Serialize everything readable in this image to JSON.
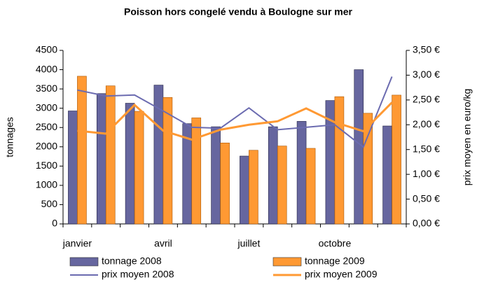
{
  "chart_data": {
    "type": "bar_line",
    "title": "Poisson hors congelé vendu à Boulogne sur mer",
    "y_label": "tonnages",
    "y2_label": "prix moyen en euro/kg",
    "categories": [
      "janvier",
      null,
      null,
      "avril",
      null,
      null,
      "juillet",
      null,
      null,
      "octobre",
      null,
      null
    ],
    "series": [
      {
        "name": "tonnage 2008",
        "kind": "bar",
        "color": "#66669f",
        "values": [
          2930,
          3380,
          3130,
          3600,
          2600,
          2520,
          1760,
          2520,
          2660,
          3200,
          4000,
          2540
        ]
      },
      {
        "name": "tonnage 2009",
        "kind": "bar",
        "color": "#ff9933",
        "values": [
          3830,
          3580,
          2920,
          3280,
          2750,
          2100,
          1910,
          2020,
          1960,
          3300,
          2870,
          3340
        ]
      },
      {
        "name": "prix moyen 2008",
        "kind": "line",
        "axis": "y2",
        "color": "#6b6bb0",
        "values": [
          2.7,
          2.58,
          2.6,
          2.28,
          1.95,
          1.93,
          2.34,
          1.9,
          1.95,
          2.0,
          1.55,
          2.97
        ]
      },
      {
        "name": "prix moyen 2009",
        "kind": "line",
        "axis": "y2",
        "color": "#ff9933",
        "values": [
          1.88,
          1.82,
          2.4,
          1.88,
          1.7,
          1.9,
          2.0,
          2.07,
          2.33,
          2.05,
          1.87,
          2.45
        ]
      }
    ],
    "ylim": [
      0,
      4500
    ],
    "yticks": [
      0,
      500,
      1000,
      1500,
      2000,
      2500,
      3000,
      3500,
      4000,
      4500
    ],
    "y2lim": [
      0,
      3.5
    ],
    "y2ticks": [
      {
        "value": 0,
        "label": "0,00 €"
      },
      {
        "value": 0.5,
        "label": "0,50 €"
      },
      {
        "value": 1,
        "label": "1,00 €"
      },
      {
        "value": 1.5,
        "label": "1,50 €"
      },
      {
        "value": 2,
        "label": "2,00 €"
      },
      {
        "value": 2.5,
        "label": "2,50 €"
      },
      {
        "value": 3,
        "label": "3,00 €"
      },
      {
        "value": 3.5,
        "label": "3,50 €"
      }
    ]
  }
}
